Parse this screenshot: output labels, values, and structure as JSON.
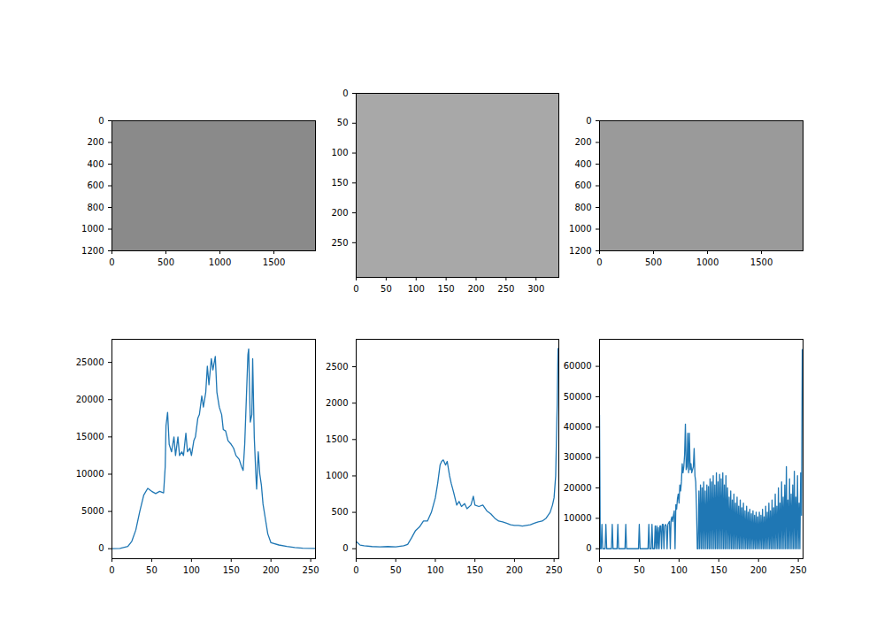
{
  "chart_data": [
    {
      "type": "image",
      "xlim": [
        0,
        1885
      ],
      "ylim": [
        1200,
        0
      ],
      "xticks": [
        0,
        500,
        1000,
        1500
      ],
      "yticks": [
        0,
        200,
        400,
        600,
        800,
        1000,
        1200
      ]
    },
    {
      "type": "image",
      "xlim": [
        0,
        338
      ],
      "ylim": [
        308,
        0
      ],
      "xticks": [
        0,
        50,
        100,
        150,
        200,
        250,
        300
      ],
      "yticks": [
        0,
        50,
        100,
        150,
        200,
        250
      ]
    },
    {
      "type": "image",
      "xlim": [
        0,
        1885
      ],
      "ylim": [
        1200,
        0
      ],
      "xticks": [
        0,
        500,
        1000,
        1500
      ],
      "yticks": [
        0,
        200,
        400,
        600,
        800,
        1000,
        1200
      ]
    },
    {
      "type": "line",
      "color": "#1f77b4",
      "xlim": [
        0,
        256
      ],
      "ylim": [
        -1340,
        28100
      ],
      "xticks": [
        0,
        50,
        100,
        150,
        200,
        250
      ],
      "yticks": [
        0,
        5000,
        10000,
        15000,
        20000,
        25000
      ],
      "x": [
        0,
        10,
        20,
        25,
        30,
        35,
        40,
        45,
        50,
        55,
        60,
        65,
        67,
        68,
        70,
        72,
        75,
        78,
        80,
        83,
        85,
        88,
        90,
        93,
        95,
        98,
        100,
        103,
        105,
        108,
        110,
        113,
        115,
        118,
        120,
        122,
        125,
        127,
        130,
        132,
        135,
        138,
        140,
        143,
        146,
        150,
        153,
        156,
        160,
        163,
        165,
        167,
        169,
        171,
        172,
        174,
        176,
        177,
        179,
        181,
        182,
        184,
        186,
        188,
        190,
        193,
        196,
        200,
        210,
        220,
        230,
        240,
        255
      ],
      "values": [
        0,
        50,
        300,
        1000,
        2500,
        5000,
        7200,
        8100,
        7700,
        7400,
        7700,
        7500,
        11000,
        16500,
        18300,
        14000,
        13000,
        15000,
        12500,
        15000,
        12500,
        13000,
        12500,
        15500,
        13000,
        13500,
        12500,
        14500,
        15000,
        17500,
        18000,
        20500,
        19000,
        21000,
        24500,
        22000,
        25500,
        24000,
        25800,
        21000,
        19000,
        18000,
        16000,
        15800,
        14500,
        14000,
        13500,
        12500,
        12000,
        11000,
        10500,
        14000,
        20000,
        26000,
        26800,
        17000,
        18000,
        25500,
        15000,
        10000,
        8000,
        13000,
        10000,
        8500,
        6000,
        4000,
        2000,
        800,
        500,
        300,
        150,
        80,
        30
      ]
    },
    {
      "type": "line",
      "color": "#1f77b4",
      "xlim": [
        0,
        256
      ],
      "ylim": [
        -137,
        2877
      ],
      "xticks": [
        0,
        50,
        100,
        150,
        200,
        250
      ],
      "yticks": [
        0,
        500,
        1000,
        1500,
        2000,
        2500
      ],
      "x": [
        0,
        5,
        10,
        20,
        30,
        40,
        50,
        60,
        65,
        70,
        75,
        80,
        85,
        90,
        95,
        100,
        103,
        106,
        108,
        110,
        113,
        115,
        118,
        120,
        123,
        127,
        130,
        133,
        137,
        140,
        145,
        148,
        150,
        155,
        160,
        165,
        170,
        175,
        180,
        185,
        190,
        195,
        200,
        205,
        210,
        215,
        220,
        225,
        230,
        235,
        240,
        245,
        248,
        250,
        252,
        254,
        255
      ],
      "values": [
        100,
        50,
        40,
        30,
        25,
        30,
        25,
        40,
        60,
        150,
        250,
        300,
        380,
        380,
        500,
        700,
        900,
        1150,
        1200,
        1220,
        1150,
        1200,
        1000,
        900,
        780,
        600,
        650,
        580,
        620,
        550,
        600,
        720,
        600,
        580,
        600,
        520,
        480,
        420,
        380,
        370,
        350,
        330,
        320,
        320,
        310,
        320,
        330,
        350,
        370,
        380,
        420,
        500,
        600,
        700,
        1000,
        2000,
        2750
      ]
    },
    {
      "type": "line",
      "color": "#1f77b4",
      "xlim": [
        0,
        256
      ],
      "ylim": [
        -3280,
        68900
      ],
      "xticks": [
        0,
        50,
        100,
        150,
        200,
        250
      ],
      "yticks": [
        0,
        10000,
        20000,
        30000,
        40000,
        50000,
        60000
      ],
      "x": [
        0,
        1,
        2,
        3,
        4,
        7,
        8,
        9,
        15,
        16,
        17,
        22,
        23,
        24,
        32,
        33,
        34,
        49,
        50,
        51,
        61,
        62,
        63,
        65,
        66,
        67,
        69,
        70,
        71,
        72,
        73,
        74,
        75,
        76,
        77,
        78,
        79,
        80,
        81,
        82,
        83,
        84,
        85,
        86,
        87,
        88,
        89,
        90,
        91,
        92,
        93,
        94,
        95,
        96,
        97,
        98,
        99,
        100,
        101,
        102,
        103,
        104,
        105,
        106,
        107,
        108,
        109,
        110,
        111,
        112,
        113,
        114,
        115,
        116,
        117,
        118,
        119,
        120,
        121,
        122,
        123,
        124,
        125,
        126,
        127,
        128,
        129,
        130,
        131,
        132,
        133,
        134,
        135,
        136,
        137,
        138,
        139,
        140,
        141,
        142,
        143,
        144,
        145,
        146,
        147,
        148,
        149,
        150,
        151,
        152,
        153,
        154,
        155,
        156,
        157,
        158,
        159,
        160,
        161,
        162,
        163,
        164,
        165,
        166,
        167,
        168,
        169,
        170,
        171,
        172,
        173,
        174,
        175,
        176,
        177,
        178,
        179,
        180,
        181,
        182,
        183,
        184,
        185,
        186,
        187,
        188,
        189,
        190,
        191,
        192,
        193,
        194,
        195,
        196,
        197,
        198,
        199,
        200,
        201,
        202,
        203,
        204,
        205,
        206,
        207,
        208,
        209,
        210,
        211,
        212,
        213,
        214,
        215,
        216,
        217,
        218,
        219,
        220,
        221,
        222,
        223,
        224,
        225,
        226,
        227,
        228,
        229,
        230,
        231,
        232,
        233,
        234,
        235,
        236,
        237,
        238,
        239,
        240,
        241,
        242,
        243,
        244,
        245,
        246,
        247,
        248,
        249,
        250,
        251,
        252,
        253,
        254,
        255
      ],
      "values": [
        44000,
        0,
        0,
        8000,
        0,
        0,
        8000,
        0,
        0,
        8000,
        0,
        0,
        8000,
        0,
        0,
        8000,
        0,
        0,
        8000,
        0,
        0,
        8000,
        0,
        0,
        8000,
        0,
        0,
        7500,
        0,
        7500,
        0,
        7000,
        0,
        7500,
        7500,
        0,
        8000,
        8000,
        0,
        7500,
        8000,
        7500,
        0,
        8000,
        8500,
        9000,
        0,
        9500,
        10500,
        9000,
        11000,
        12500,
        0,
        14500,
        13000,
        16500,
        18000,
        15000,
        21000,
        19000,
        22000,
        28000,
        25000,
        27000,
        31000,
        41000,
        26000,
        27000,
        38000,
        25000,
        38000,
        26000,
        28000,
        25000,
        26000,
        27000,
        33000,
        24000,
        22000,
        13000,
        0,
        0,
        19000,
        0,
        21000,
        0,
        20000,
        0,
        22000,
        0,
        19000,
        0,
        21000,
        0,
        20500,
        0,
        23000,
        0,
        22000,
        0,
        24000,
        0,
        21000,
        0,
        25000,
        0,
        22000,
        0,
        24500,
        0,
        23000,
        0,
        25000,
        0,
        21000,
        0,
        24000,
        0,
        20000,
        0,
        17000,
        0,
        19000,
        0,
        16000,
        0,
        18000,
        0,
        15000,
        0,
        17000,
        0,
        14000,
        0,
        16000,
        0,
        13500,
        0,
        15000,
        0,
        12500,
        0,
        14000,
        0,
        12000,
        0,
        13000,
        0,
        11500,
        0,
        12500,
        0,
        11000,
        0,
        12000,
        0,
        10500,
        0,
        12000,
        0,
        11000,
        0,
        13000,
        0,
        10500,
        0,
        14000,
        0,
        12000,
        0,
        15000,
        0,
        12500,
        0,
        16000,
        0,
        13500,
        0,
        18000,
        0,
        14000,
        0,
        20000,
        0,
        15000,
        0,
        22000,
        0,
        17000,
        0,
        21000,
        0,
        27000,
        0,
        16000,
        0,
        23000,
        0,
        18000,
        0,
        21000,
        0,
        25500,
        0,
        17000,
        0,
        24000,
        0,
        15000,
        0,
        25000,
        11000,
        65500
      ]
    }
  ]
}
